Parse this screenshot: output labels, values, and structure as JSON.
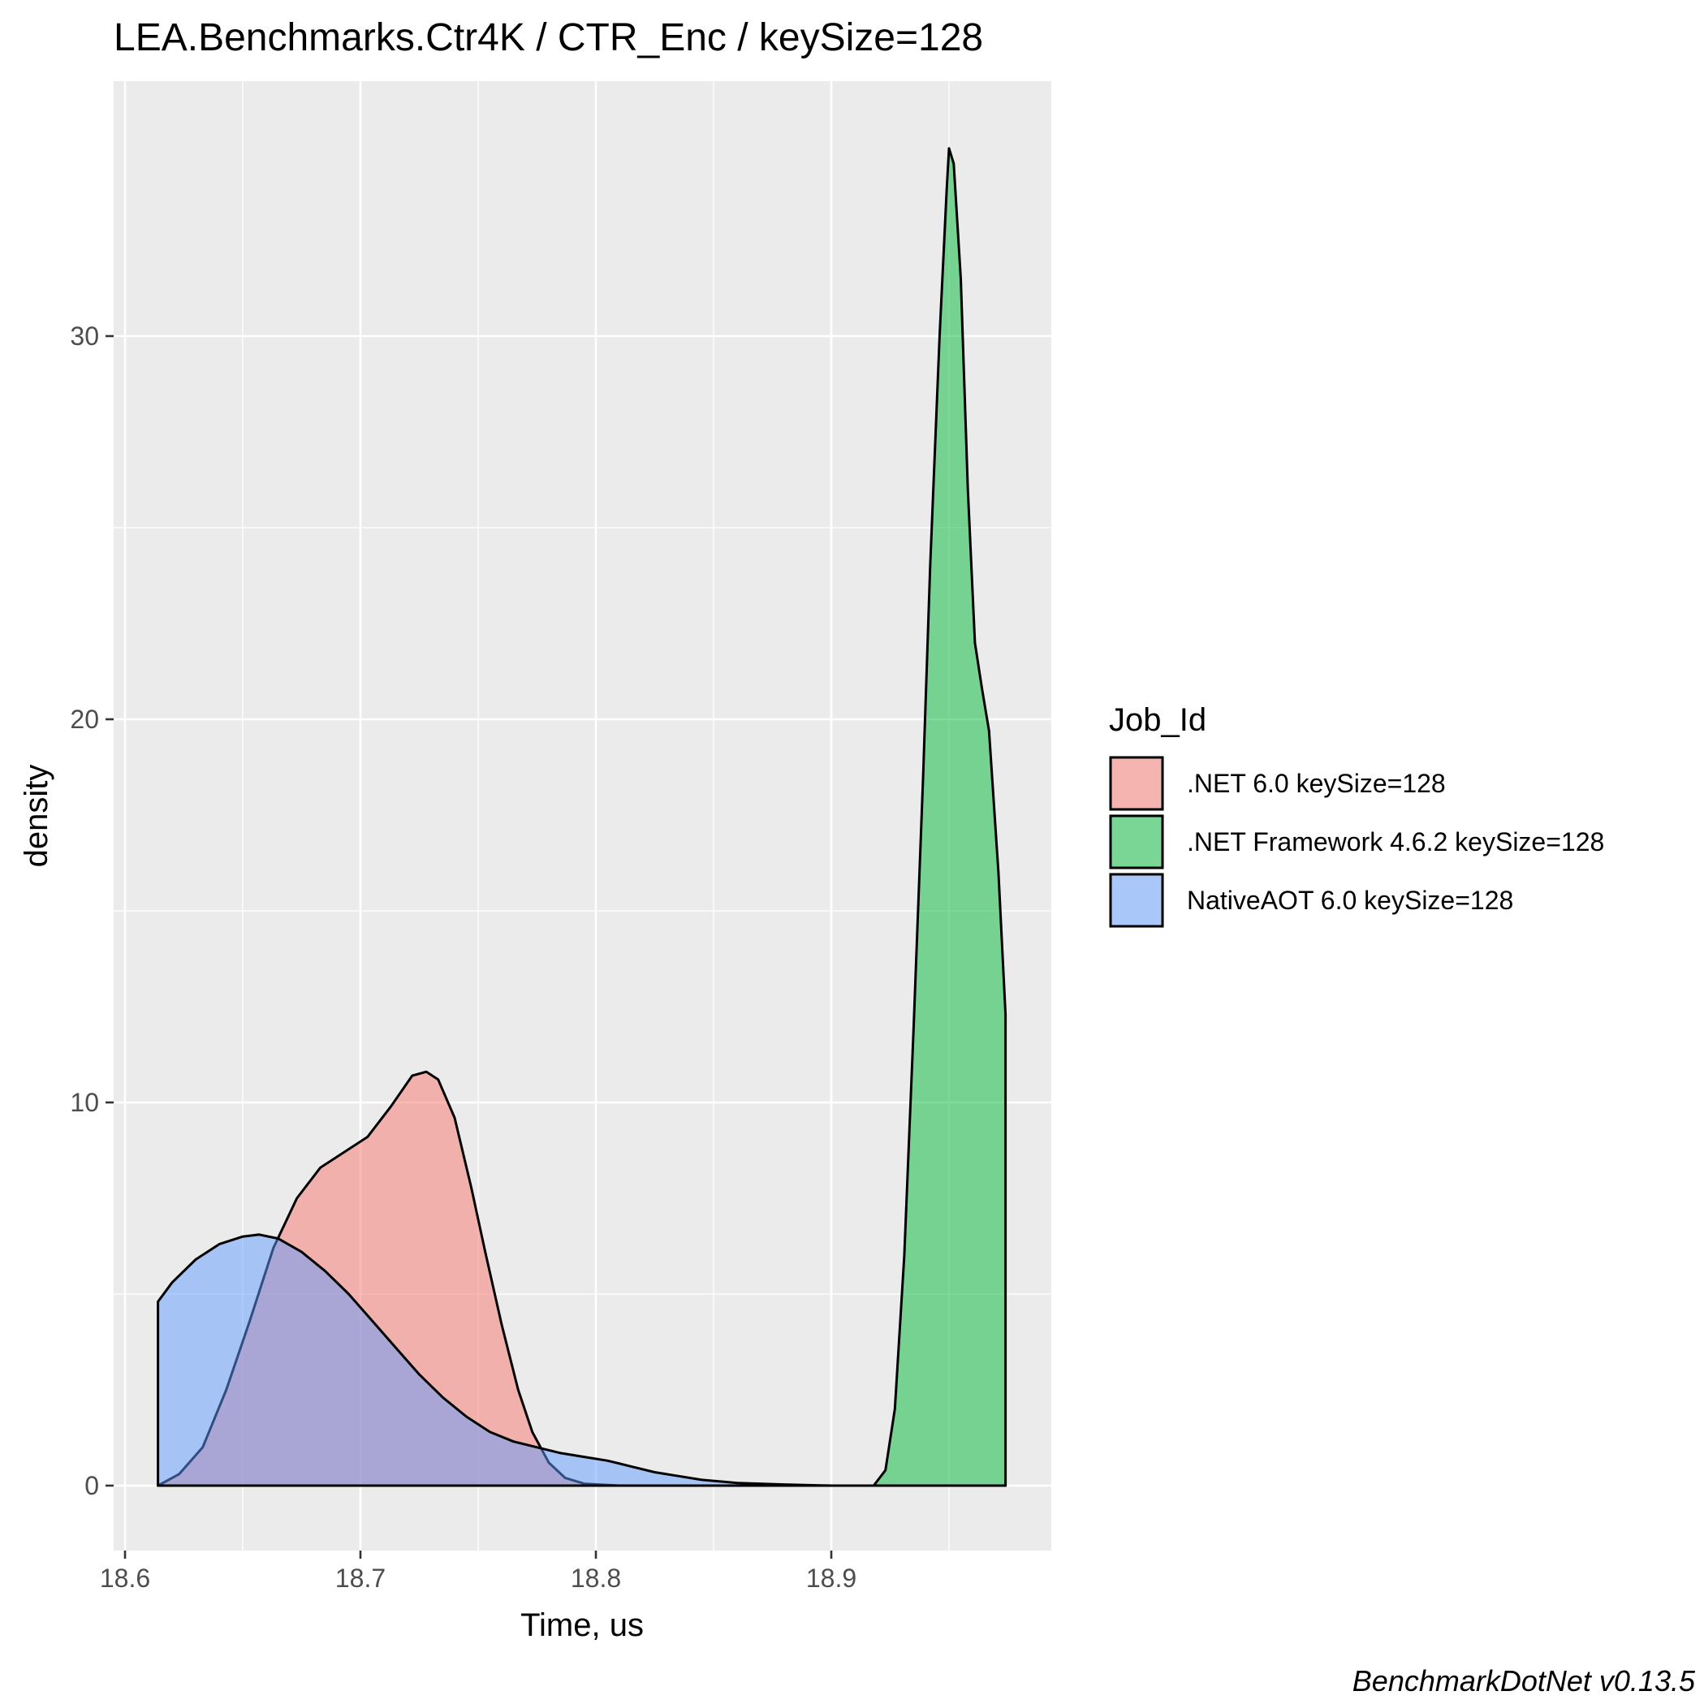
{
  "chart_data": {
    "type": "area",
    "title": "LEA.Benchmarks.Ctr4K / CTR_Enc / keySize=128",
    "xlabel": "Time, us",
    "ylabel": "density",
    "caption": "BenchmarkDotNet v0.13.5",
    "xlim": [
      18.575,
      18.97
    ],
    "ylim": [
      -1.7,
      35.9
    ],
    "x_ticks": [
      {
        "value": 18.6,
        "label": "18.6"
      },
      {
        "value": 18.7,
        "label": "18.7"
      },
      {
        "value": 18.8,
        "label": "18.8"
      },
      {
        "value": 18.9,
        "label": "18.9"
      }
    ],
    "y_ticks": [
      {
        "value": 0,
        "label": "0"
      },
      {
        "value": 10,
        "label": "10"
      },
      {
        "value": 20,
        "label": "20"
      },
      {
        "value": 30,
        "label": "30"
      }
    ],
    "grid": true,
    "legend": {
      "title": "Job_Id",
      "placement": "right"
    },
    "series": [
      {
        "name": ".NET 6.0 keySize=128",
        "color": "#F8766D",
        "alpha": 0.5,
        "points": [
          [
            18.614,
            0.0
          ],
          [
            18.623,
            0.3
          ],
          [
            18.633,
            1.0
          ],
          [
            18.643,
            2.5
          ],
          [
            18.653,
            4.3
          ],
          [
            18.663,
            6.2
          ],
          [
            18.673,
            7.5
          ],
          [
            18.683,
            8.3
          ],
          [
            18.693,
            8.7
          ],
          [
            18.703,
            9.1
          ],
          [
            18.713,
            9.9
          ],
          [
            18.722,
            10.7
          ],
          [
            18.728,
            10.8
          ],
          [
            18.733,
            10.6
          ],
          [
            18.74,
            9.6
          ],
          [
            18.747,
            7.8
          ],
          [
            18.753,
            6.1
          ],
          [
            18.76,
            4.2
          ],
          [
            18.767,
            2.5
          ],
          [
            18.773,
            1.4
          ],
          [
            18.78,
            0.6
          ],
          [
            18.787,
            0.2
          ],
          [
            18.795,
            0.05
          ],
          [
            18.81,
            0.0
          ],
          [
            18.85,
            0.0
          ],
          [
            18.9,
            0.0
          ],
          [
            18.974,
            0.0
          ]
        ]
      },
      {
        "name": ".NET Framework 4.6.2 keySize=128",
        "color": "#00BA38",
        "alpha": 0.5,
        "points": [
          [
            18.614,
            0.0
          ],
          [
            18.7,
            0.0
          ],
          [
            18.8,
            0.0
          ],
          [
            18.9,
            0.0
          ],
          [
            18.918,
            0.0
          ],
          [
            18.923,
            0.4
          ],
          [
            18.927,
            2.0
          ],
          [
            18.931,
            6.0
          ],
          [
            18.935,
            12.0
          ],
          [
            18.939,
            18.5
          ],
          [
            18.942,
            24.0
          ],
          [
            18.946,
            30.0
          ],
          [
            18.949,
            33.8
          ],
          [
            18.95,
            34.9
          ],
          [
            18.952,
            34.5
          ],
          [
            18.955,
            31.5
          ],
          [
            18.958,
            26.0
          ],
          [
            18.961,
            22.0
          ],
          [
            18.964,
            20.8
          ],
          [
            18.967,
            19.7
          ],
          [
            18.971,
            16.0
          ],
          [
            18.974,
            12.3
          ]
        ]
      },
      {
        "name": "NativeAOT 6.0 keySize=128",
        "color": "#619CFF",
        "alpha": 0.5,
        "points": [
          [
            18.614,
            4.8
          ],
          [
            18.62,
            5.3
          ],
          [
            18.63,
            5.9
          ],
          [
            18.64,
            6.3
          ],
          [
            18.65,
            6.5
          ],
          [
            18.657,
            6.55
          ],
          [
            18.665,
            6.45
          ],
          [
            18.675,
            6.1
          ],
          [
            18.685,
            5.6
          ],
          [
            18.695,
            5.0
          ],
          [
            18.705,
            4.3
          ],
          [
            18.715,
            3.6
          ],
          [
            18.725,
            2.9
          ],
          [
            18.735,
            2.3
          ],
          [
            18.745,
            1.8
          ],
          [
            18.755,
            1.4
          ],
          [
            18.765,
            1.15
          ],
          [
            18.775,
            1.0
          ],
          [
            18.785,
            0.85
          ],
          [
            18.795,
            0.75
          ],
          [
            18.805,
            0.65
          ],
          [
            18.815,
            0.5
          ],
          [
            18.825,
            0.35
          ],
          [
            18.835,
            0.25
          ],
          [
            18.845,
            0.15
          ],
          [
            18.86,
            0.07
          ],
          [
            18.88,
            0.03
          ],
          [
            18.9,
            0.0
          ],
          [
            18.974,
            0.0
          ]
        ]
      }
    ]
  }
}
